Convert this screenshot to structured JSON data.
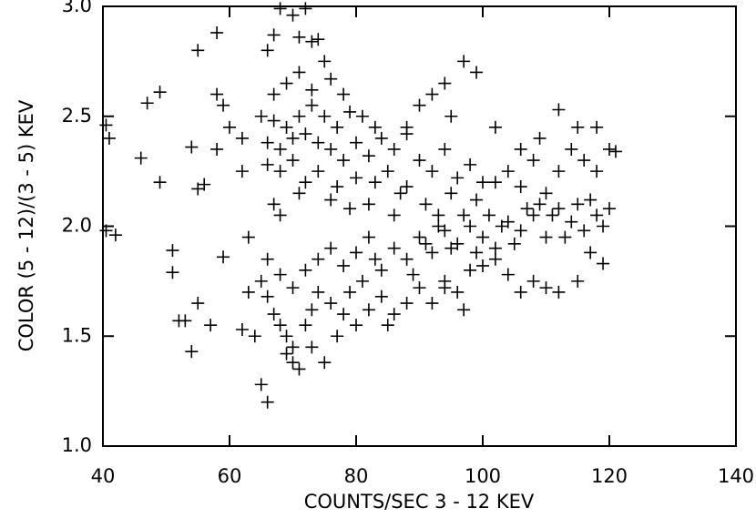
{
  "chart_data": {
    "type": "scatter",
    "xlabel": "COUNTS/SEC  3 - 12 KEV",
    "ylabel": "COLOR  (5 - 12)/(3 - 5) KEV",
    "xlim": [
      40,
      140
    ],
    "xticks": [
      40,
      60,
      80,
      100,
      120,
      140
    ],
    "ylim": [
      1.0,
      3.0
    ],
    "yticks": [
      {
        "value": 1.0,
        "label": "1.0"
      },
      1.5,
      {
        "value": 2.0,
        "label": "2.0"
      },
      2.5,
      {
        "value": 3.0,
        "label": "3.0"
      }
    ],
    "marker": "+",
    "color": "#000000",
    "x": [
      40.5,
      41,
      40.5,
      42,
      46,
      47,
      49,
      49,
      51,
      51,
      53,
      52,
      54,
      55,
      55,
      54,
      55,
      56,
      57,
      58,
      58,
      59,
      59,
      58,
      60,
      62,
      62,
      63,
      62,
      64,
      65,
      66,
      66,
      67,
      68,
      70,
      72,
      71,
      73,
      74,
      75,
      67,
      69,
      71,
      73,
      76,
      78,
      65,
      67,
      69,
      71,
      73,
      75,
      77,
      79,
      81,
      83,
      66,
      68,
      70,
      72,
      74,
      76,
      78,
      80,
      82,
      84,
      86,
      88,
      66,
      68,
      70,
      72,
      74,
      77,
      80,
      83,
      85,
      87,
      90,
      92,
      94,
      96,
      98,
      100,
      67,
      68,
      71,
      76,
      79,
      82,
      86,
      88,
      91,
      93,
      95,
      97,
      99,
      102,
      104,
      106,
      108,
      110,
      112,
      114,
      116,
      118,
      120,
      121,
      118,
      115,
      112,
      97,
      99,
      92,
      94,
      90,
      88,
      95,
      102,
      106,
      109,
      65,
      66,
      67,
      68,
      69,
      70,
      70,
      71,
      69,
      72,
      73,
      74,
      76,
      78,
      80,
      82,
      84,
      86,
      88,
      90,
      92,
      94,
      96,
      98,
      66,
      68,
      70,
      72,
      74,
      76,
      78,
      80,
      82,
      84,
      86,
      88,
      90,
      92,
      94,
      96,
      98,
      100,
      102,
      104,
      106,
      108,
      110,
      112,
      114,
      116,
      118,
      120,
      117,
      119,
      115,
      112,
      110,
      108,
      106,
      104,
      102,
      100,
      97,
      94,
      63,
      75,
      73,
      77,
      85,
      79,
      81,
      83,
      89,
      91,
      93,
      95,
      99,
      101,
      103,
      105,
      107,
      109,
      111,
      113,
      115,
      117,
      119
    ],
    "values": [
      2.46,
      2.4,
      1.98,
      1.96,
      2.31,
      2.56,
      2.61,
      2.2,
      1.89,
      1.79,
      1.57,
      1.57,
      1.43,
      1.65,
      2.8,
      2.36,
      2.17,
      2.19,
      1.55,
      2.88,
      2.6,
      2.55,
      1.86,
      2.35,
      2.45,
      2.4,
      2.25,
      1.95,
      1.53,
      1.5,
      1.28,
      1.2,
      2.8,
      2.87,
      2.99,
      2.96,
      2.99,
      2.86,
      2.84,
      2.85,
      2.75,
      2.6,
      2.65,
      2.7,
      2.62,
      2.67,
      2.6,
      2.5,
      2.48,
      2.45,
      2.5,
      2.55,
      2.5,
      2.45,
      2.52,
      2.5,
      2.45,
      2.38,
      2.35,
      2.4,
      2.42,
      2.38,
      2.35,
      2.3,
      2.38,
      2.32,
      2.4,
      2.35,
      2.42,
      2.28,
      2.25,
      2.3,
      2.2,
      2.25,
      2.18,
      2.22,
      2.2,
      2.25,
      2.15,
      2.3,
      2.25,
      2.35,
      2.22,
      2.28,
      2.2,
      2.1,
      2.05,
      2.15,
      2.12,
      2.08,
      2.1,
      2.05,
      2.18,
      2.1,
      2.0,
      2.15,
      2.05,
      2.12,
      2.2,
      2.25,
      2.18,
      2.3,
      2.15,
      2.25,
      2.35,
      2.3,
      2.25,
      2.35,
      2.34,
      2.45,
      2.45,
      2.53,
      2.75,
      2.7,
      2.6,
      2.65,
      2.55,
      2.45,
      2.5,
      2.45,
      2.35,
      2.4,
      1.75,
      1.68,
      1.6,
      1.55,
      1.5,
      1.45,
      1.38,
      1.35,
      1.42,
      1.55,
      1.62,
      1.7,
      1.65,
      1.6,
      1.55,
      1.62,
      1.68,
      1.6,
      1.65,
      1.72,
      1.65,
      1.75,
      1.7,
      1.8,
      1.85,
      1.78,
      1.72,
      1.8,
      1.85,
      1.9,
      1.82,
      1.88,
      1.95,
      1.8,
      1.9,
      1.85,
      1.95,
      1.88,
      1.98,
      1.92,
      2.0,
      1.95,
      1.9,
      2.02,
      1.98,
      2.05,
      1.95,
      2.08,
      2.02,
      1.98,
      2.05,
      2.08,
      1.88,
      1.83,
      1.75,
      1.7,
      1.72,
      1.75,
      1.7,
      1.78,
      1.85,
      1.82,
      1.62,
      1.72,
      1.7,
      1.38,
      1.45,
      1.5,
      1.55,
      1.7,
      1.75,
      1.85,
      1.78,
      1.92,
      2.05,
      1.9,
      1.88,
      2.05,
      2.0,
      1.92,
      2.08,
      2.1,
      2.05,
      1.95,
      2.1,
      2.12,
      2.0
    ]
  }
}
